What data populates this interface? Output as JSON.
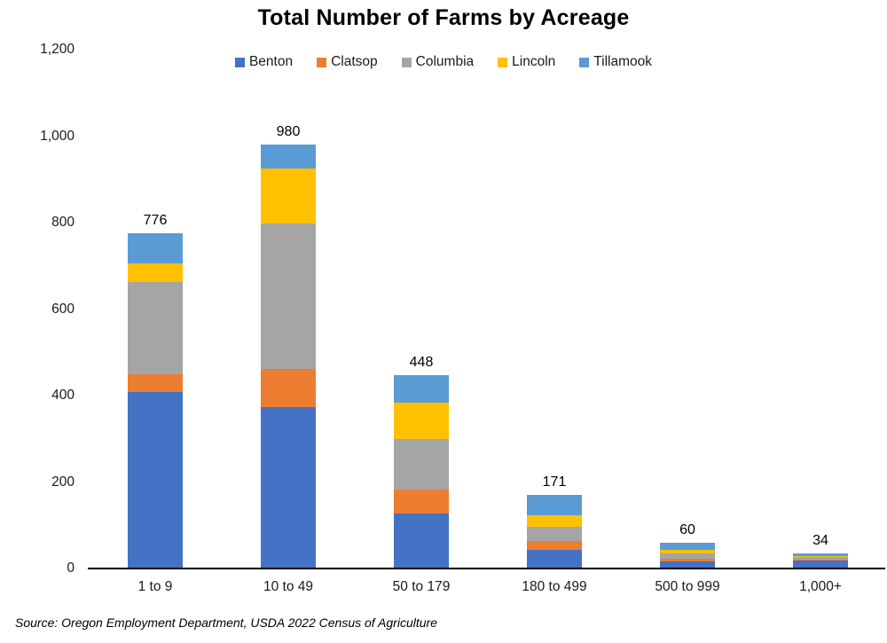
{
  "title": "Total Number of Farms by Acreage",
  "source_note": "Source: Oregon Employment Department, USDA 2022 Census of Agriculture",
  "chart_data": {
    "type": "bar",
    "stacked": true,
    "title": "Total Number of Farms by Acreage",
    "categories": [
      "1 to 9",
      "10 to 49",
      "50 to 179",
      "180 to 499",
      "500 to 999",
      "1,000+"
    ],
    "series": [
      {
        "name": "Benton",
        "color": "#4472C4",
        "values": [
          409,
          373,
          127,
          44,
          17,
          18
        ]
      },
      {
        "name": "Clatsop",
        "color": "#ED7D31",
        "values": [
          41,
          89,
          56,
          20,
          6,
          3
        ]
      },
      {
        "name": "Columbia",
        "color": "#A5A5A5",
        "values": [
          212,
          335,
          117,
          33,
          11,
          5
        ]
      },
      {
        "name": "Lincoln",
        "color": "#FFC000",
        "values": [
          44,
          128,
          83,
          27,
          9,
          3
        ]
      },
      {
        "name": "Tillamook",
        "color": "#5B9BD5",
        "values": [
          70,
          55,
          65,
          47,
          17,
          5
        ]
      }
    ],
    "totals": [
      "776",
      "980",
      "448",
      "171",
      "60",
      "34"
    ],
    "y_axis": {
      "min": 0,
      "max": 1200,
      "tick_interval": 200,
      "tick_labels": [
        "0",
        "200",
        "400",
        "600",
        "800",
        "1,000",
        "1,200"
      ]
    },
    "legend": {
      "position": "top",
      "entries": [
        "Benton",
        "Clatsop",
        "Columbia",
        "Lincoln",
        "Tillamook"
      ]
    },
    "grid": false,
    "axis_color": "#000000",
    "background": "#ffffff"
  }
}
